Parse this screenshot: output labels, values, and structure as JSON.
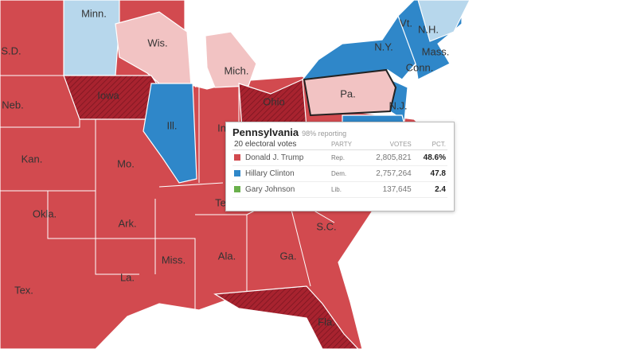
{
  "map": {
    "states": [
      "Minn.",
      "S.D.",
      "Wis.",
      "Mich.",
      "N.Y.",
      "Vt.",
      "N.H.",
      "Mass.",
      "Conn.",
      "Pa.",
      "N.J.",
      "Iowa",
      "Neb.",
      "Ill.",
      "Ohio",
      "Kan.",
      "Mo.",
      "Okla.",
      "Ark.",
      "S.C.",
      "Miss.",
      "Ala.",
      "Ga.",
      "La.",
      "Tex.",
      "Fla.",
      "Ind.",
      "Tenn."
    ]
  },
  "tooltip": {
    "title": "Pennsylvania",
    "reporting": "98% reporting",
    "subtitle": "20 electoral votes",
    "headers": [
      "PARTY",
      "VOTES",
      "PCT."
    ],
    "rows": [
      [
        "Donald J. Trump",
        "Rep.",
        "2,805,821",
        "48.6%"
      ],
      [
        "Hillary Clinton",
        "Dem.",
        "2,757,264",
        "47.8"
      ],
      [
        "Gary Johnson",
        "Lib.",
        "137,645",
        "2.4"
      ]
    ]
  }
}
